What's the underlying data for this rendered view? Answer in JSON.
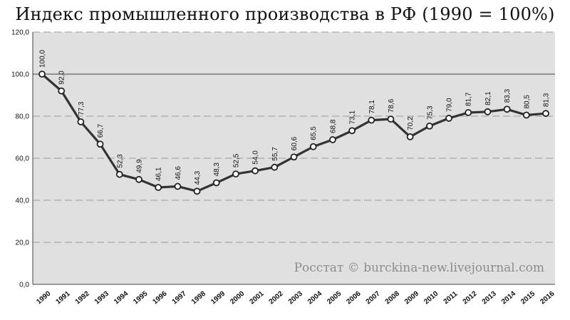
{
  "chart_data": {
    "type": "line",
    "title": "Индекс промышленного производства в РФ (1990 = 100%)",
    "credit": "Росстат © burckina-new.livejournal.com",
    "x": [
      "1990",
      "1991",
      "1992",
      "1993",
      "1994",
      "1995",
      "1996",
      "1997",
      "1998",
      "1999",
      "2000",
      "2001",
      "2002",
      "2003",
      "2004",
      "2005",
      "2006",
      "2007",
      "2008",
      "2009",
      "2010",
      "2011",
      "2012",
      "2013",
      "2014",
      "2015",
      "2016"
    ],
    "values": [
      100.0,
      92.0,
      77.3,
      66.7,
      52.3,
      49.9,
      46.1,
      46.6,
      44.3,
      48.3,
      52.5,
      54.0,
      55.7,
      60.6,
      65.5,
      68.8,
      73.1,
      78.1,
      78.6,
      70.2,
      75.3,
      79.0,
      81.7,
      82.1,
      83.3,
      80.5,
      81.3
    ],
    "value_labels": [
      "100,0",
      "92,0",
      "77,3",
      "66,7",
      "52,3",
      "49,9",
      "46,1",
      "46,6",
      "44,3",
      "48,3",
      "52,5",
      "54,0",
      "55,7",
      "60,6",
      "65,5",
      "68,8",
      "73,1",
      "78,1",
      "78,6",
      "70,2",
      "75,3",
      "79,0",
      "81,7",
      "82,1",
      "83,3",
      "80,5",
      "81,3"
    ],
    "y_ticks": [
      "0,0",
      "20,0",
      "40,0",
      "60,0",
      "80,0",
      "100,0",
      "120,0"
    ],
    "y_tick_values": [
      0,
      20,
      40,
      60,
      80,
      100,
      120
    ],
    "ylim": [
      0,
      120
    ],
    "reference_line": 100,
    "grid": true,
    "xlabel": "",
    "ylabel": "",
    "colors": {
      "plot_background": "#e0e0e0",
      "line": "#333333",
      "marker_fill": "#ffffff",
      "grid": "#9a9a9a"
    }
  }
}
